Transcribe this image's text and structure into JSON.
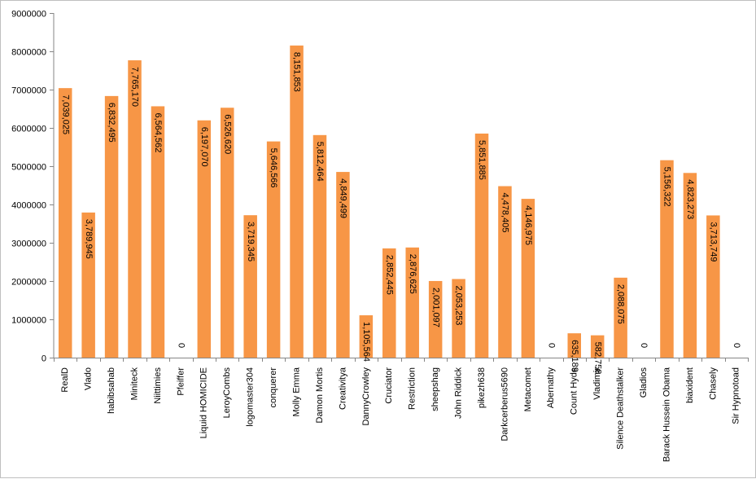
{
  "chart_data": {
    "type": "bar",
    "title": "",
    "xlabel": "",
    "ylabel": "",
    "ylim": [
      0,
      9000000
    ],
    "y_ticks": [
      0,
      1000000,
      2000000,
      3000000,
      4000000,
      5000000,
      6000000,
      7000000,
      8000000,
      9000000
    ],
    "y_tick_labels": [
      "0",
      "1000000",
      "2000000",
      "3000000",
      "4000000",
      "5000000",
      "6000000",
      "7000000",
      "8000000",
      "9000000"
    ],
    "grid": false,
    "legend": "none",
    "bar_color": "#F79646",
    "categories": [
      "RealD",
      "Vlado",
      "habibsahab",
      "Miniteck",
      "Niittimies",
      "Pfeiffer",
      "Liquid HOMICIDE",
      "LeroyCombs",
      "logomaster304",
      "conquerer",
      "Molly Emma",
      "Damon Mortis",
      "Creativitya",
      "DannyCrowley",
      "Cruciator",
      "Restriction",
      "sheepshag",
      "John Riddick",
      "pikezh638",
      "Darkcerberus5690",
      "Metacomet",
      "Abernathy",
      "Count Hyde",
      "Vladimir",
      "Silence Deathstalker",
      "Gladios",
      "Barack Hussein Obama",
      "biaxident",
      "Chasely",
      "Sir Hypnotoad"
    ],
    "values": [
      7039025,
      3789945,
      6832495,
      7765170,
      6564562,
      0,
      6197070,
      6526620,
      3719345,
      5646566,
      8151853,
      5812464,
      4849499,
      1105564,
      2852445,
      2876625,
      2001097,
      2053253,
      5851885,
      4478405,
      4146975,
      0,
      635189,
      582758,
      2088075,
      0,
      5156322,
      4823273,
      3713749,
      0
    ],
    "data_labels": [
      "7,039,025",
      "3,789,945",
      "6,832,495",
      "7,765,170",
      "6,564,562",
      "0",
      "6,197,070",
      "6,526,620",
      "3,719,345",
      "5,646,566",
      "8,151,853",
      "5,812,464",
      "4,849,499",
      "1,105,564",
      "2,852,445",
      "2,876,625",
      "2,001,097",
      "2,053,253",
      "5,851,885",
      "4,478,405",
      "4,146,975",
      "0",
      "635,189",
      "582,758",
      "2,088,075",
      "0",
      "5,156,322",
      "4,823,273",
      "3,713,749",
      "0"
    ]
  }
}
